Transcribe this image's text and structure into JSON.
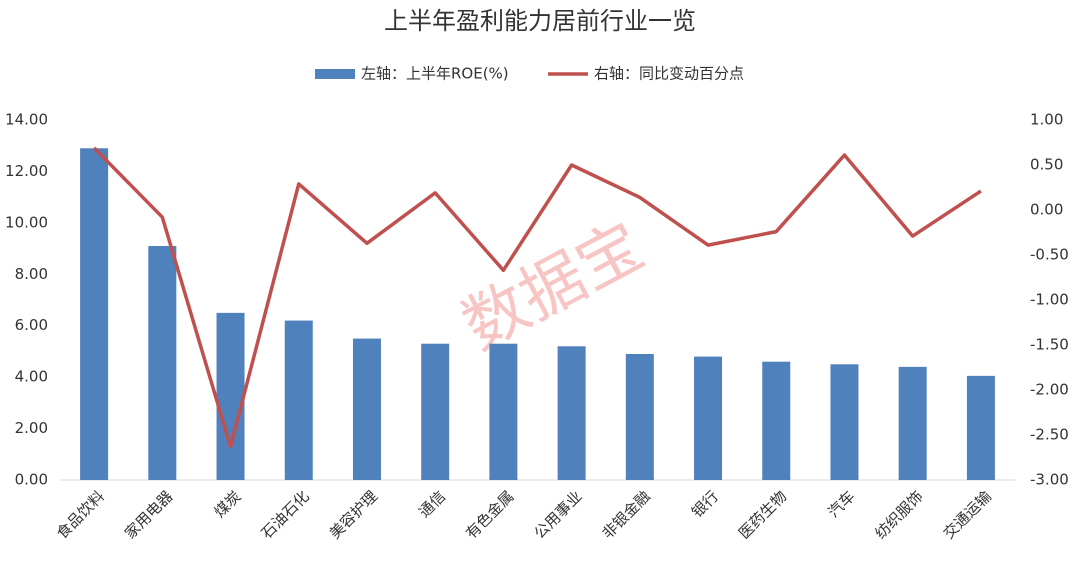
{
  "chart_data": {
    "type": "bar_line",
    "title": "上半年盈利能力居前行业一览",
    "watermark": "数据宝",
    "categories": [
      "食品饮料",
      "家用电器",
      "煤炭",
      "石油石化",
      "美容护理",
      "通信",
      "有色金属",
      "公用事业",
      "非银金融",
      "银行",
      "医药生物",
      "汽车",
      "纺织服饰",
      "交通运输"
    ],
    "series": [
      {
        "name": "左轴：上半年ROE(%)",
        "type": "bar",
        "color": "#4f81bd",
        "values": [
          12.9,
          9.1,
          6.5,
          6.2,
          5.5,
          5.3,
          5.3,
          5.2,
          4.9,
          4.8,
          4.6,
          4.5,
          4.4,
          4.05
        ]
      },
      {
        "name": "右轴：同比变动百分点",
        "type": "line",
        "axis": "y2",
        "color": "#c0504d",
        "values": [
          0.69,
          -0.08,
          -2.63,
          0.29,
          -0.37,
          0.19,
          -0.67,
          0.5,
          0.14,
          -0.39,
          -0.24,
          0.61,
          -0.29,
          0.21
        ]
      }
    ],
    "ylim": [
      0,
      14
    ],
    "yticks": [
      {
        "value": 0,
        "label": "0.00"
      },
      {
        "value": 2,
        "label": "2.00"
      },
      {
        "value": 4,
        "label": "4.00"
      },
      {
        "value": 6,
        "label": "6.00"
      },
      {
        "value": 8,
        "label": "8.00"
      },
      {
        "value": 10,
        "label": "10.00"
      },
      {
        "value": 12,
        "label": "12.00"
      },
      {
        "value": 14,
        "label": "14.00"
      }
    ],
    "y2lim": [
      -3,
      1
    ],
    "y2ticks": [
      {
        "value": -3,
        "label": "-3.00"
      },
      {
        "value": -2.5,
        "label": "-2.50"
      },
      {
        "value": -2,
        "label": "-2.00"
      },
      {
        "value": -1.5,
        "label": "-1.50"
      },
      {
        "value": -1,
        "label": "-1.00"
      },
      {
        "value": -0.5,
        "label": "-0.50"
      },
      {
        "value": 0,
        "label": "0.00"
      },
      {
        "value": 0.5,
        "label": "0.50"
      },
      {
        "value": 1,
        "label": "1.00"
      }
    ],
    "grid": false,
    "legend": "top"
  }
}
